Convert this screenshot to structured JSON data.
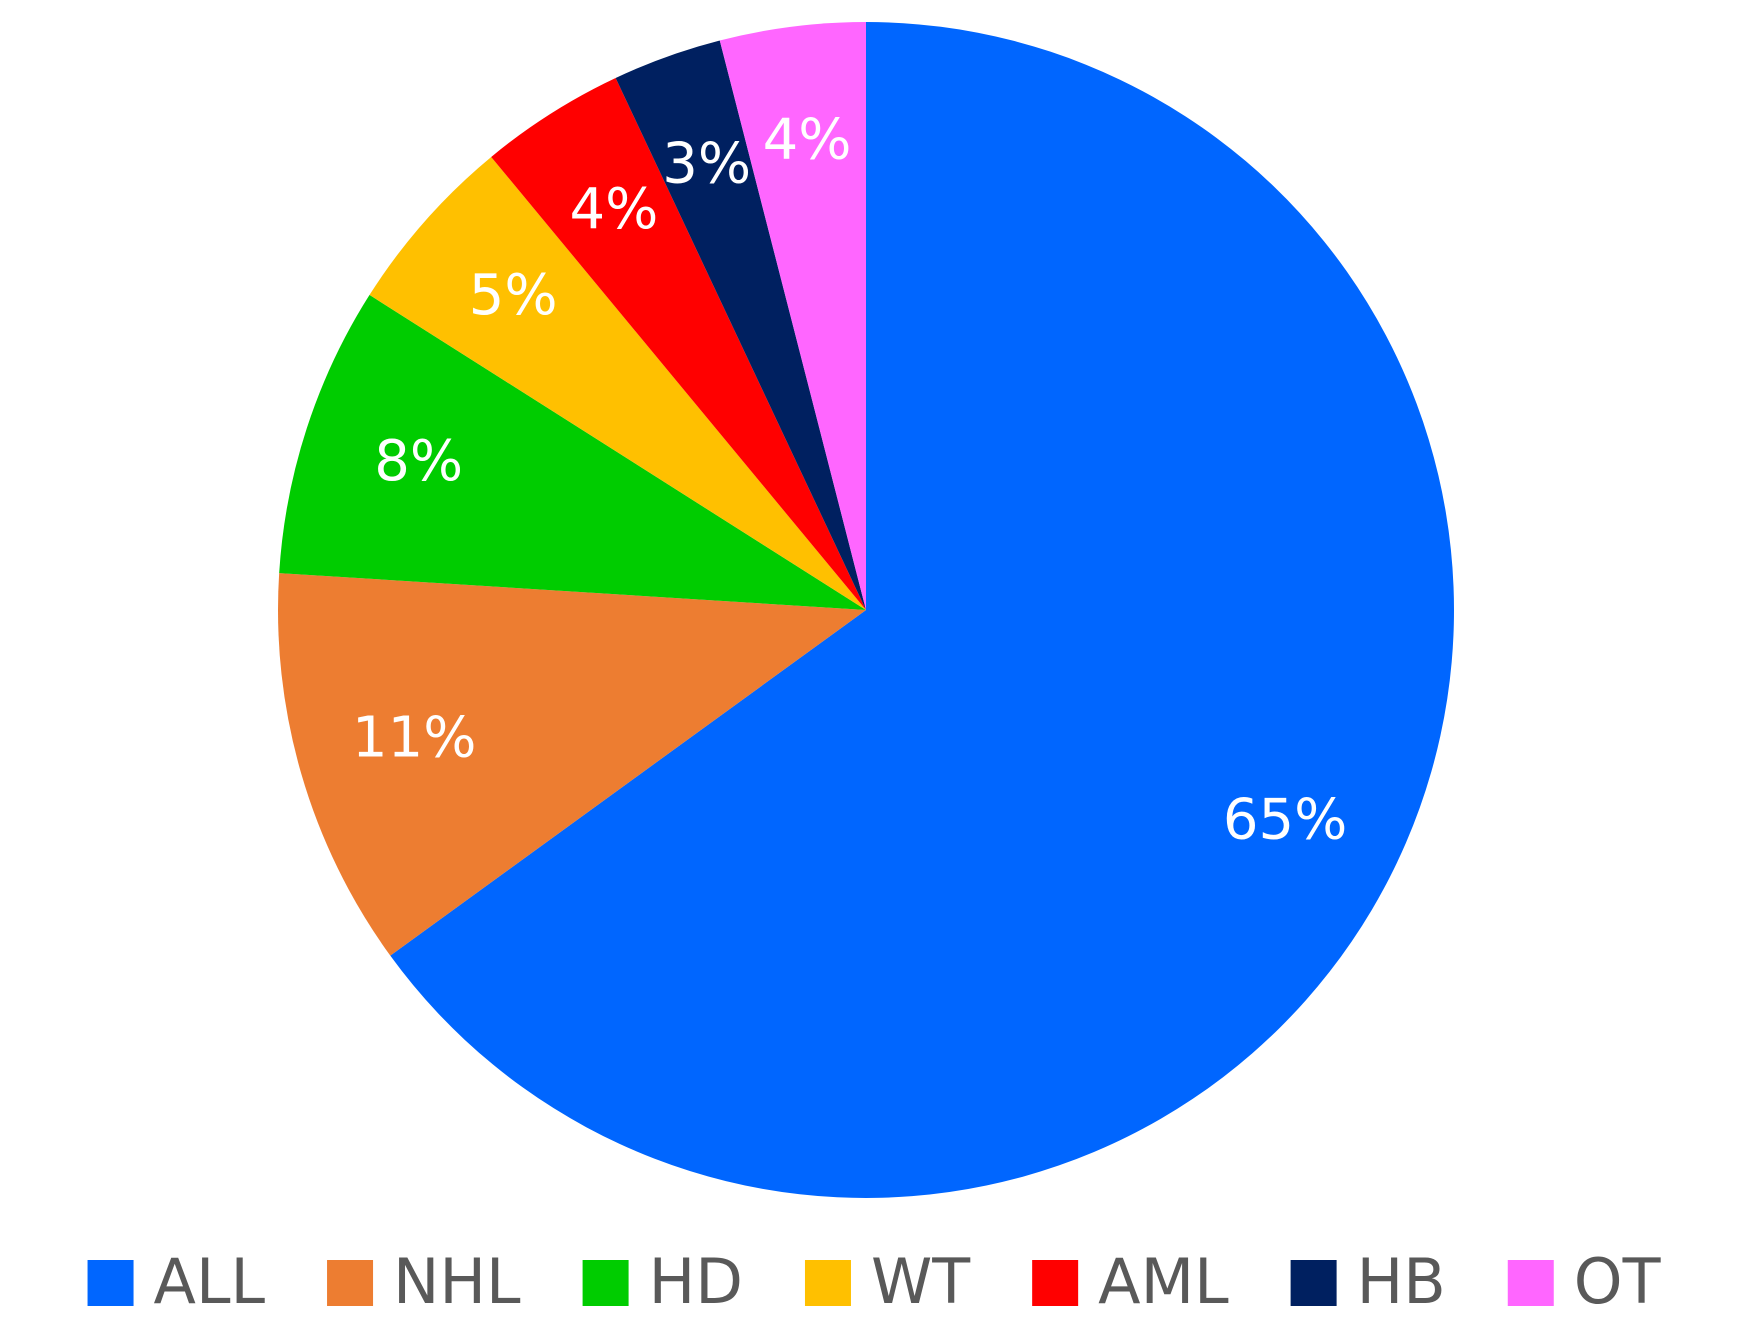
{
  "chart_data": {
    "type": "pie",
    "categories": [
      "ALL",
      "NHL",
      "HD",
      "WT",
      "AML",
      "HB",
      "OT"
    ],
    "values": [
      65,
      11,
      8,
      5,
      4,
      3,
      4
    ],
    "value_labels": [
      "65%",
      "11%",
      "8%",
      "5%",
      "4%",
      "3%",
      "4%"
    ],
    "colors": [
      "#0066ff",
      "#ed7d31",
      "#00cc00",
      "#ffc000",
      "#ff0000",
      "#002060",
      "#ff66ff"
    ],
    "legend": "bottom"
  }
}
